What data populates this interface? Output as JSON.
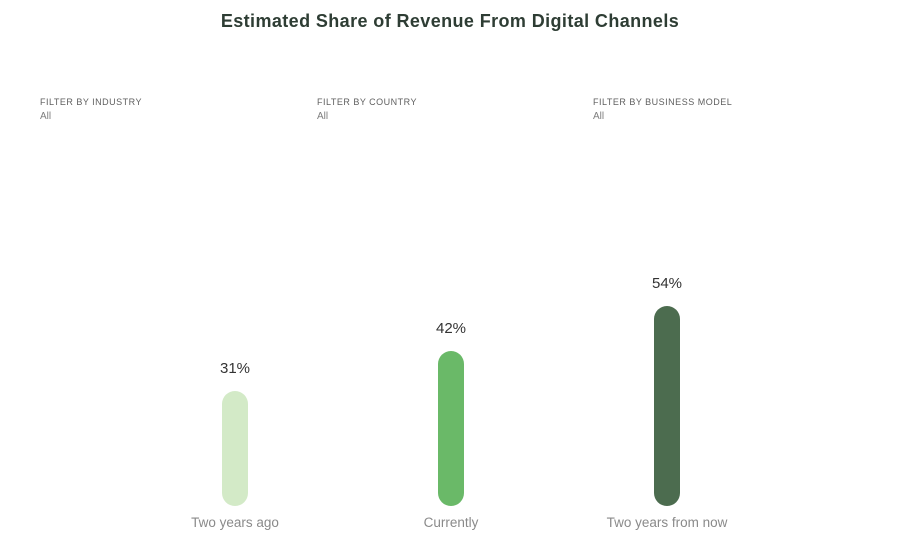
{
  "title": "Estimated Share of Revenue From Digital Channels",
  "filters": [
    {
      "label": "FILTER BY INDUSTRY",
      "value": "All"
    },
    {
      "label": "FILTER BY COUNTRY",
      "value": "All"
    },
    {
      "label": "FILTER BY BUSINESS MODEL",
      "value": "All"
    }
  ],
  "chart_data": {
    "type": "bar",
    "title": "Estimated Share of Revenue From Digital Channels",
    "categories": [
      "Two years ago",
      "Currently",
      "Two years from now"
    ],
    "values": [
      31,
      42,
      54
    ],
    "value_labels": [
      "31%",
      "42%",
      "54%"
    ],
    "unit": "%",
    "bar_colors": [
      "#d3eac7",
      "#6ab968",
      "#4c6c4f"
    ],
    "bar_shape": "rounded-pill",
    "value_label_position": "above",
    "value_label_color": "#333333",
    "category_label_color": "#8a8a8a",
    "title_color": "#2e3d34",
    "ylim": [
      0,
      60
    ],
    "grid": false,
    "legend": "none",
    "xlabel": "",
    "ylabel": ""
  }
}
